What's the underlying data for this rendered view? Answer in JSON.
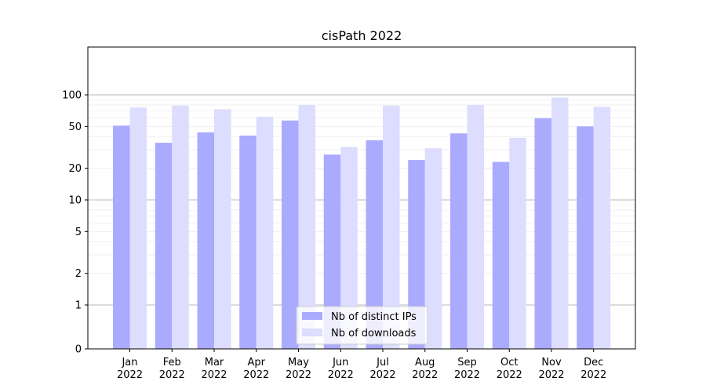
{
  "chart_data": {
    "type": "bar",
    "title": "cisPath 2022",
    "xlabel": "",
    "ylabel": "",
    "y_scale": "symlog",
    "y_ticks": [
      0,
      1,
      2,
      5,
      10,
      20,
      50,
      100
    ],
    "categories": [
      "Jan\n2022",
      "Feb\n2022",
      "Mar\n2022",
      "Apr\n2022",
      "May\n2022",
      "Jun\n2022",
      "Jul\n2022",
      "Aug\n2022",
      "Sep\n2022",
      "Oct\n2022",
      "Nov\n2022",
      "Dec\n2022"
    ],
    "series": [
      {
        "name": "Nb of distinct IPs",
        "color": "#aaaaff",
        "values": [
          51,
          35,
          44,
          41,
          57,
          27,
          37,
          24,
          43,
          23,
          60,
          50
        ]
      },
      {
        "name": "Nb of downloads",
        "color": "#ddddff",
        "values": [
          76,
          79,
          73,
          62,
          80,
          32,
          79,
          31,
          80,
          39,
          94,
          77
        ]
      }
    ],
    "legend_position": "bottom-center",
    "grid": true
  }
}
